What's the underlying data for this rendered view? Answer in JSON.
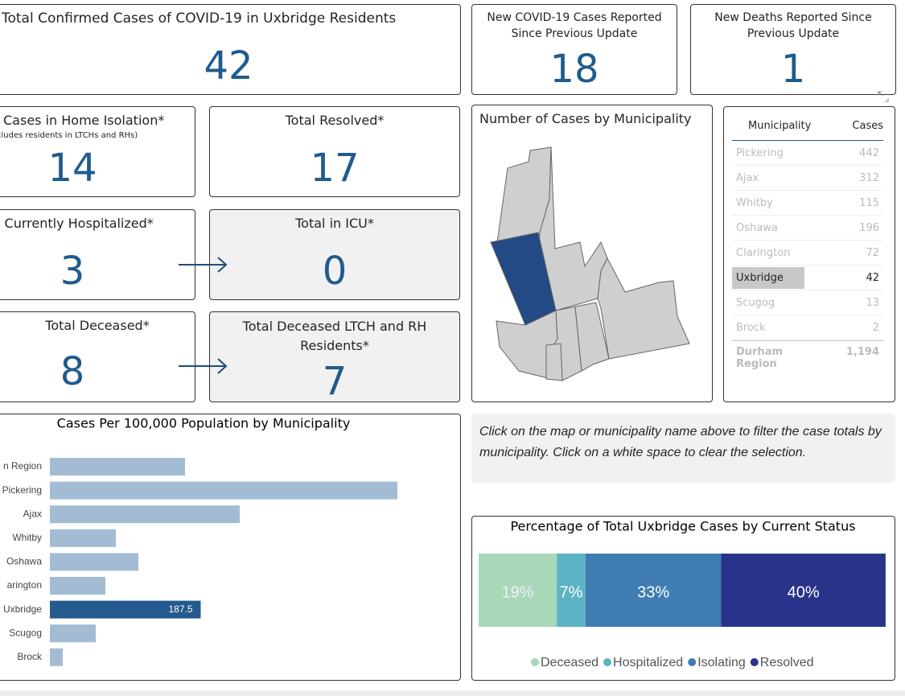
{
  "cards": [
    {
      "title": "Total Confirmed Cases of COVID-19 in Uxbridge Residents",
      "value": 42
    },
    {
      "title": "New COVID-19 Cases Reported Since Previous Update",
      "value": 18
    },
    {
      "title": "New Deaths Reported Since Previous Update",
      "value": 1
    },
    {
      "title": "Cases in Home Isolation*",
      "subtitle": "cludes residents in LTCHs and RHs)",
      "value": 14
    },
    {
      "title": "Total Resolved*",
      "value": 17
    },
    {
      "title": "l Currently Hospitalized*",
      "value": 3
    },
    {
      "title": "Total in ICU*",
      "value": 0
    },
    {
      "title": "Total Deceased*",
      "value": 8
    },
    {
      "title": "Total Deceased LTCH and RH Residents*",
      "value": 7
    }
  ],
  "map": {
    "title": "Number of Cases by Municipality"
  },
  "table": {
    "header": [
      "Municipality",
      "Cases"
    ],
    "rows": [
      [
        "Pickering",
        442
      ],
      [
        "Ajax",
        312
      ],
      [
        "Whitby",
        115
      ],
      [
        "Oshawa",
        196
      ],
      [
        "Clarington",
        72
      ],
      [
        "Uxbridge",
        42
      ],
      [
        "Scugog",
        13
      ],
      [
        "Brock",
        2
      ]
    ],
    "total": [
      "Durham Region",
      "1,194"
    ]
  },
  "note": "Click on the map or municipality name above to filter the case totals by municipality. Click on a white space to clear the selection.",
  "chart_data": [
    {
      "type": "bar",
      "orientation": "horizontal",
      "title": "Cases Per 100,000 Population by Municipality",
      "categories": [
        "n Region",
        "Pickering",
        "Ajax",
        "Whitby",
        "Oshawa",
        "arington",
        "Uxbridge",
        "Scugog",
        "Brock"
      ],
      "values": [
        168,
        432,
        236,
        82,
        110,
        69,
        187.5,
        57,
        16
      ],
      "colors": [
        "#a3bcd4",
        "#a3bcd4",
        "#a3bcd4",
        "#a3bcd4",
        "#a3bcd4",
        "#a3bcd4",
        "#245a8d",
        "#a3bcd4",
        "#a3bcd4"
      ],
      "value_labels": [
        null,
        null,
        null,
        null,
        null,
        null,
        "187.5",
        null,
        null
      ],
      "xlim": [
        0,
        440
      ]
    },
    {
      "type": "stacked_bar",
      "orientation": "horizontal",
      "title": "Percentage of Total Uxbridge Cases by Current Status",
      "series": [
        {
          "name": "Deceased",
          "color": "#a9d8b8",
          "values": [
            19
          ],
          "value_labels": [
            "19%"
          ]
        },
        {
          "name": "Hospitalized",
          "color": "#5cb3c3",
          "values": [
            7
          ],
          "value_labels": [
            "7%"
          ]
        },
        {
          "name": "Isolating",
          "color": "#407db3",
          "values": [
            33
          ],
          "value_labels": [
            "33%"
          ]
        },
        {
          "name": "Resolved",
          "color": "#29338a",
          "values": [
            40
          ],
          "value_labels": [
            "40%"
          ]
        }
      ],
      "xlim": [
        0,
        100
      ],
      "legend": "bottom"
    }
  ]
}
